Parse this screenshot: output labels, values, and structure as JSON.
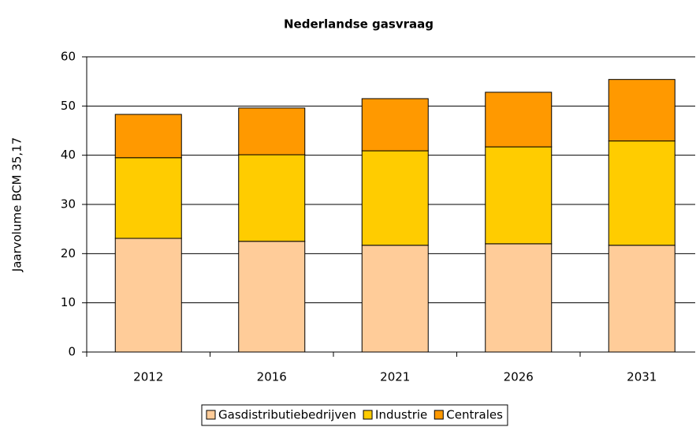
{
  "chart_data": {
    "type": "stacked_bar",
    "title": "Nederlandse gasvraag",
    "y_label": "Jaarvolume BCM 35,17",
    "categories": [
      "2012",
      "2016",
      "2021",
      "2026",
      "2031"
    ],
    "series": [
      {
        "name": "Gasdistributiebedrijven",
        "color": "#ffcc99",
        "values": [
          23.1,
          22.5,
          21.7,
          22.0,
          21.7
        ]
      },
      {
        "name": "Industrie",
        "color": "#ffcc00",
        "values": [
          16.4,
          17.6,
          19.2,
          19.7,
          21.2
        ]
      },
      {
        "name": "Centrales",
        "color": "#ff9900",
        "values": [
          8.8,
          9.5,
          10.6,
          11.1,
          12.5
        ]
      }
    ],
    "ylim": [
      0,
      60
    ],
    "yticks": [
      0,
      10,
      20,
      30,
      40,
      50,
      60
    ],
    "grid": true,
    "legend": "bottom"
  }
}
